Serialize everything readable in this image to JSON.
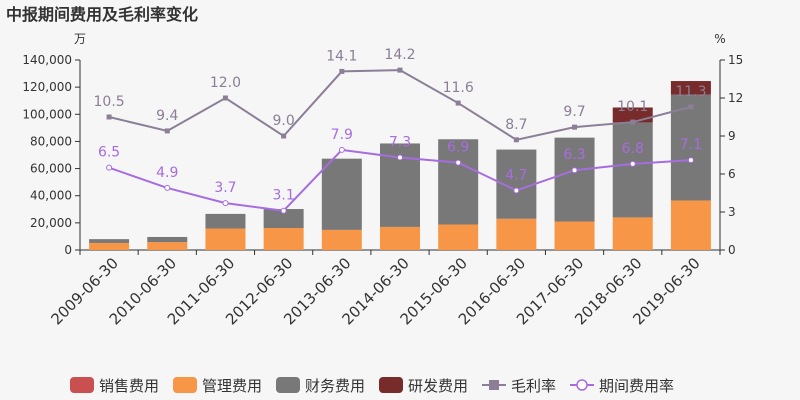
{
  "chart_data": {
    "type": "bar",
    "title": "中报期间费用及毛利率变化",
    "left_unit": "万",
    "right_unit": "%",
    "categories": [
      "2009-06-30",
      "2010-06-30",
      "2011-06-30",
      "2012-06-30",
      "2013-06-30",
      "2014-06-30",
      "2015-06-30",
      "2016-06-30",
      "2017-06-30",
      "2018-06-30",
      "2019-06-30"
    ],
    "ylim_left": [
      0,
      140000
    ],
    "yticks_left": [
      "0",
      "20,000",
      "40,000",
      "60,000",
      "80,000",
      "100,000",
      "120,000",
      "140,000"
    ],
    "ylim_right": [
      0,
      15
    ],
    "yticks_right": [
      "0",
      "3",
      "6",
      "9",
      "12",
      "15"
    ],
    "stacked": true,
    "bar_series": [
      {
        "name": "销售费用",
        "color": "#c9504f",
        "values": [
          0,
          0,
          0,
          0,
          0,
          0,
          0,
          0,
          0,
          0,
          0
        ]
      },
      {
        "name": "管理费用",
        "color": "#f79646",
        "values": [
          5200,
          5800,
          15800,
          16200,
          14800,
          17000,
          18800,
          23000,
          21000,
          24000,
          36500
        ]
      },
      {
        "name": "财务费用",
        "color": "#787878",
        "values": [
          2800,
          3800,
          10800,
          14000,
          52500,
          61500,
          62800,
          51000,
          61800,
          70000,
          78000
        ]
      },
      {
        "name": "研发费用",
        "color": "#772b2b",
        "values": [
          0,
          0,
          0,
          0,
          0,
          0,
          0,
          0,
          0,
          11000,
          10000
        ]
      }
    ],
    "line_series": [
      {
        "name": "毛利率",
        "color": "#8b7e96",
        "marker": "square",
        "values": [
          10.5,
          9.4,
          12.0,
          9.0,
          14.1,
          14.2,
          11.6,
          8.7,
          9.7,
          10.1,
          11.3
        ],
        "labels": [
          "10.5",
          "9.4",
          "12.0",
          "9.0",
          "14.1",
          "14.2",
          "11.6",
          "8.7",
          "9.7",
          "10.1",
          "11.3"
        ]
      },
      {
        "name": "期间费用率",
        "color": "#a76de0",
        "marker": "circle",
        "values": [
          6.5,
          4.9,
          3.7,
          3.1,
          7.9,
          7.3,
          6.9,
          4.7,
          6.3,
          6.8,
          7.1
        ],
        "labels": [
          "6.5",
          "4.9",
          "3.7",
          "3.1",
          "7.9",
          "7.3",
          "6.9",
          "4.7",
          "6.3",
          "6.8",
          "7.1"
        ]
      }
    ],
    "legend_position": "bottom",
    "grid": false
  }
}
